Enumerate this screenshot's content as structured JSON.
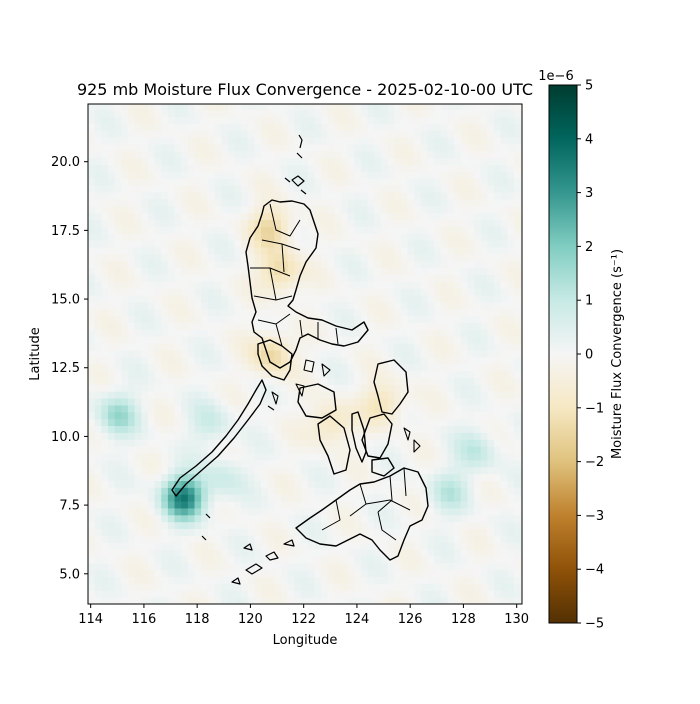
{
  "figure": {
    "title": "925 mb Moisture Flux Convergence - 2025-02-10-00 UTC",
    "xlabel": "Longitude",
    "ylabel": "Latitude"
  },
  "colorbar": {
    "label": "Moisture Flux Convergence (s⁻¹)",
    "exponent_label": "1e−6",
    "ticks": [
      "5",
      "4",
      "3",
      "2",
      "1",
      "0",
      "−1",
      "−2",
      "−3",
      "−4",
      "−5"
    ],
    "colors": [
      "#533003",
      "#8f5208",
      "#bf812d",
      "#dfc27d",
      "#f6e8c3",
      "#f5f5f5",
      "#c7eae5",
      "#80cdc1",
      "#35978f",
      "#01665e",
      "#003c30"
    ]
  },
  "chart_data": {
    "type": "heatmap",
    "title": "925 mb Moisture Flux Convergence - 2025-02-10-00 UTC",
    "xlabel": "Longitude",
    "ylabel": "Latitude",
    "xlim": [
      113.9,
      130.2
    ],
    "ylim": [
      3.9,
      22.1
    ],
    "xticks": [
      114,
      116,
      118,
      120,
      122,
      124,
      126,
      128,
      130
    ],
    "xtick_labels": [
      "114",
      "116",
      "118",
      "120",
      "122",
      "124",
      "126",
      "128",
      "130"
    ],
    "yticks": [
      5.0,
      7.5,
      10.0,
      12.5,
      15.0,
      17.5,
      20.0
    ],
    "ytick_labels": [
      "5.0",
      "7.5",
      "10.0",
      "12.5",
      "15.0",
      "17.5",
      "20.0"
    ],
    "colorbar_range": [
      -5e-06,
      5e-06
    ],
    "colormap": "BrBG",
    "features": [
      {
        "lon": 117.5,
        "lat": 7.8,
        "value": 3.5e-06
      },
      {
        "lon": 115.0,
        "lat": 10.8,
        "value": 1.5e-06
      },
      {
        "lon": 120.8,
        "lat": 17.6,
        "value": -1.5e-06
      },
      {
        "lon": 121.1,
        "lat": 16.0,
        "value": -1.5e-06
      },
      {
        "lon": 120.8,
        "lat": 13.0,
        "value": -1.5e-06
      },
      {
        "lon": 123.0,
        "lat": 10.5,
        "value": -1.2e-06
      },
      {
        "lon": 125.0,
        "lat": 11.2,
        "value": -1.2e-06
      },
      {
        "lon": 127.5,
        "lat": 8.0,
        "value": 1e-06
      },
      {
        "lon": 128.5,
        "lat": 9.5,
        "value": 1e-06
      },
      {
        "lon": 119.0,
        "lat": 8.5,
        "value": 8e-07
      },
      {
        "lon": 118.5,
        "lat": 10.5,
        "value": 8e-07
      }
    ]
  }
}
